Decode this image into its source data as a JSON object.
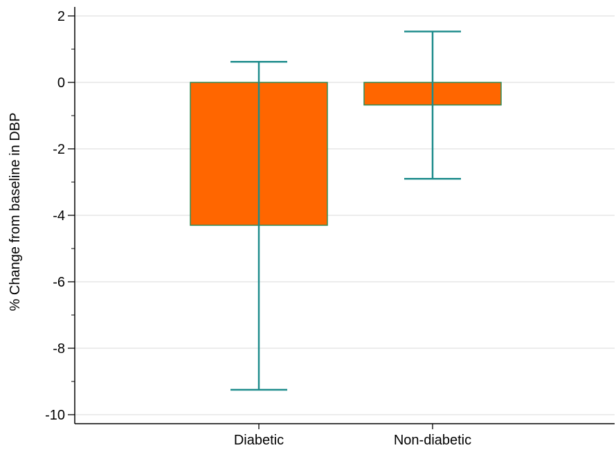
{
  "chart_data": {
    "type": "bar",
    "ylabel": "% Change from baseline in DBP",
    "xlabel": "",
    "categories": [
      "Diabetic",
      "Non-diabetic"
    ],
    "values": [
      -4.3,
      -0.68
    ],
    "error_low": [
      -9.25,
      -2.9
    ],
    "error_high": [
      0.62,
      1.53
    ],
    "ylim": [
      -10.3,
      2.3
    ],
    "yticks": [
      2,
      0,
      -2,
      -4,
      -6,
      -8,
      -10
    ],
    "ytick_labels": [
      "2",
      "0",
      "-2",
      "-4",
      "-6",
      "-8",
      "-10"
    ],
    "grid": true,
    "colors": {
      "bar_fill": "#ff6600",
      "bar_stroke": "#2e8b57",
      "error_bar": "#1e8c8c",
      "grid": "#d9d9d9",
      "axis": "#000000"
    }
  }
}
